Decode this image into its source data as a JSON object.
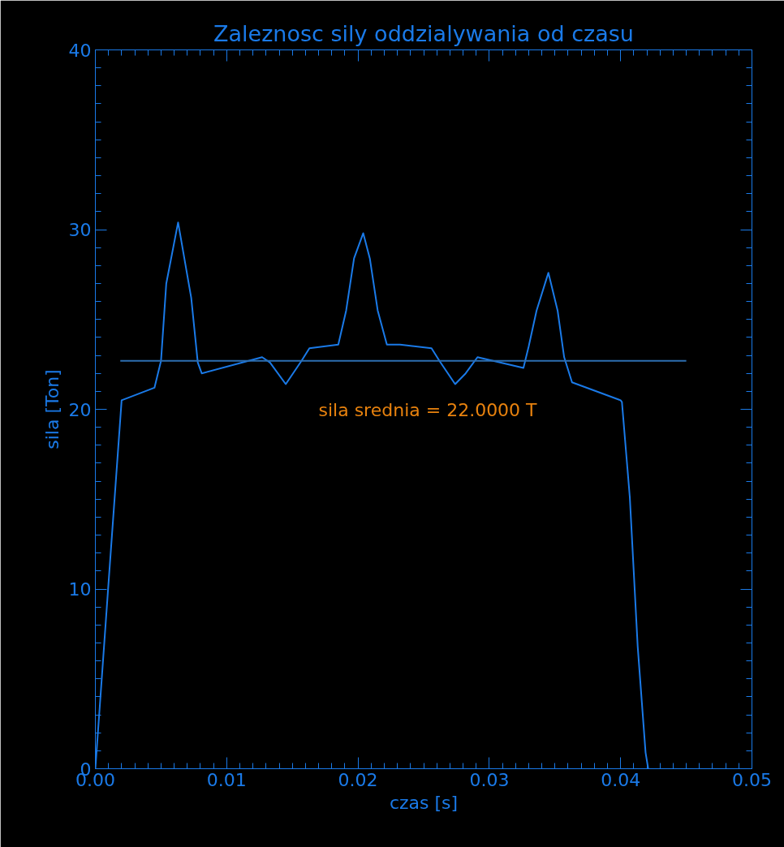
{
  "chart_data": {
    "type": "line",
    "title": "Zaleznosc sily oddzialywania od czasu",
    "xlabel": "czas [s]",
    "ylabel": "sila [Ton]",
    "xlim": [
      0,
      0.05
    ],
    "xticks": [
      {
        "value": 0,
        "label": "0.00"
      },
      0.01,
      0.02,
      0.03,
      0.04,
      0.05
    ],
    "ylim": [
      0,
      40
    ],
    "yticks": [
      0,
      10,
      20,
      30,
      40
    ],
    "grid": false,
    "marker": "none",
    "line_style": "solid",
    "annotations": [
      "sila srednia =        22.0000 T"
    ],
    "series": [
      {
        "color": "#1a7ae8",
        "x": [
          0,
          0.00097,
          0.002,
          0.0045,
          0.005,
          0.0054,
          0.0063,
          0.0073,
          0.0078,
          0.0081,
          0.0127,
          0.0133,
          0.0145,
          0.0157,
          0.0163,
          0.0185,
          0.0191,
          0.0197,
          0.0204,
          0.0209,
          0.0215,
          0.0222,
          0.0232,
          0.0256,
          0.0262,
          0.0274,
          0.0282,
          0.0291,
          0.0326,
          0.033,
          0.0336,
          0.0345,
          0.0352,
          0.0357,
          0.0363,
          0.04,
          0.0401,
          0.0407,
          0.0413,
          0.0419,
          0.0421
        ],
        "values": [
          0,
          10.0,
          20.5,
          21.2,
          22.7,
          27.0,
          30.4,
          26.2,
          22.6,
          22.0,
          22.9,
          22.6,
          21.4,
          22.7,
          23.4,
          23.6,
          25.5,
          28.4,
          29.8,
          28.4,
          25.5,
          23.6,
          23.6,
          23.4,
          22.7,
          21.4,
          22.0,
          22.9,
          22.3,
          23.5,
          25.5,
          27.6,
          25.5,
          22.9,
          21.5,
          20.5,
          20.4,
          15.1,
          6.8,
          0.9,
          0
        ]
      },
      {
        "color": "#2c6eb0",
        "x": [
          0.0019,
          0.045
        ],
        "values": [
          22.7,
          22.7
        ]
      }
    ]
  }
}
